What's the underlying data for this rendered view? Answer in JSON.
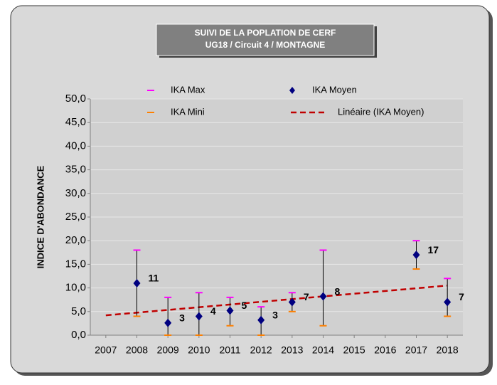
{
  "chart_data": {
    "type": "errorbar-scatter",
    "title": "SUIVI DE LA POPLATION DE CERF",
    "subtitle": "UG18 / Circuit 4 /  MONTAGNE",
    "y_label": "INDICE D'ABONDANCE",
    "x": [
      2008,
      2009,
      2010,
      2011,
      2012,
      2013,
      2014,
      2017,
      2018
    ],
    "series": [
      {
        "name": "IKA Max",
        "color": "#ff00ff",
        "values": [
          18,
          8,
          9,
          8,
          6,
          9,
          18,
          20,
          12
        ]
      },
      {
        "name": "IKA Moyen",
        "color": "#000080",
        "values": [
          11,
          2.6,
          4,
          5.2,
          3.2,
          7,
          8.2,
          17,
          7
        ],
        "value_labels": [
          "11",
          "3",
          "4",
          "5",
          "3",
          "7",
          "8",
          "17",
          "7"
        ]
      },
      {
        "name": "IKA Mini",
        "color": "#ff8000",
        "values": [
          4,
          0,
          0,
          2,
          0,
          5,
          2,
          14,
          4
        ]
      },
      {
        "name": "Linéaire (IKA Moyen)",
        "color": "#c00000",
        "x": [
          2007,
          2018
        ],
        "values": [
          4.2,
          10.5
        ]
      }
    ],
    "xlim": [
      2006.5,
      2018.5
    ],
    "xticks": [
      2007,
      2008,
      2009,
      2010,
      2011,
      2012,
      2013,
      2014,
      2015,
      2016,
      2017,
      2018
    ],
    "ylim": [
      0,
      50
    ],
    "yticks": [
      {
        "value": 0,
        "label": "0,0"
      },
      {
        "value": 5,
        "label": "5,0"
      },
      {
        "value": 10,
        "label": "10,0"
      },
      {
        "value": 15,
        "label": "15,0"
      },
      {
        "value": 20,
        "label": "20,0"
      },
      {
        "value": 25,
        "label": "25,0"
      },
      {
        "value": 30,
        "label": "30,0"
      },
      {
        "value": 35,
        "label": "35,0"
      },
      {
        "value": 40,
        "label": "40,0"
      },
      {
        "value": 45,
        "label": "45,0"
      },
      {
        "value": 50,
        "label": "50,0"
      }
    ],
    "grid": true
  }
}
